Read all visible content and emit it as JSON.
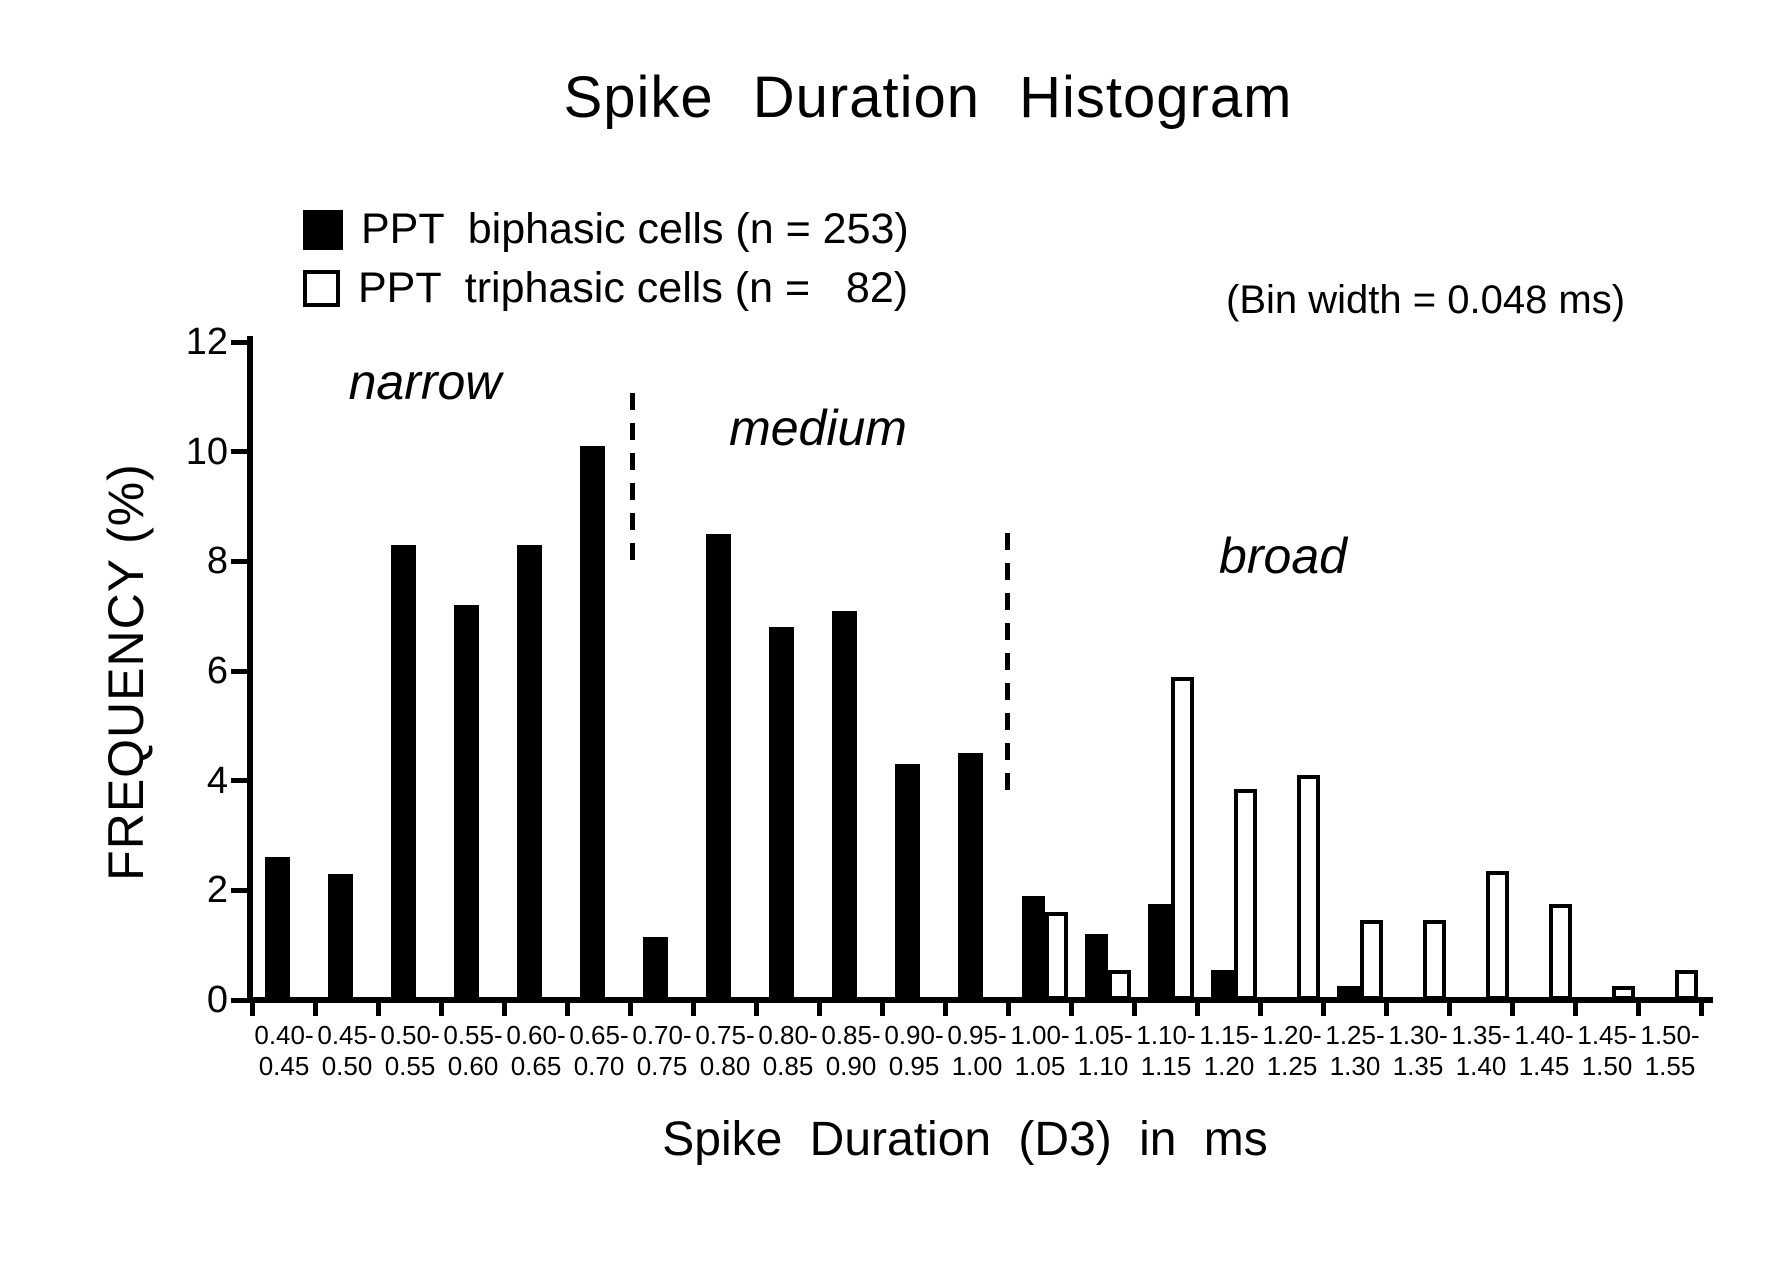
{
  "title": "Spike Duration Histogram",
  "legend": {
    "items": [
      {
        "label": "PPT  biphasic cells (n = 253)",
        "swatch": "black"
      },
      {
        "label": "PPT  triphasic cells (n =   82)",
        "swatch": "white"
      }
    ]
  },
  "bin_note": "(Bin width = 0.048 ms)",
  "y_axis": {
    "label": "FREQUENCY (%)"
  },
  "x_axis": {
    "label": "Spike Duration (D3) in ms"
  },
  "sections": [
    {
      "label": "narrow"
    },
    {
      "label": "medium"
    },
    {
      "label": "broad"
    }
  ],
  "chart_data": {
    "type": "bar",
    "title": "Spike Duration Histogram",
    "xlabel": "Spike Duration (D3) in ms",
    "ylabel": "FREQUENCY (%)",
    "ylim": [
      0,
      12
    ],
    "y_ticks": [
      0,
      2,
      4,
      6,
      8,
      10,
      12
    ],
    "grid": false,
    "legend_position": "top-left",
    "bin_width_note": "(Bin width = 0.048 ms)",
    "categories": [
      "0.40-0.45",
      "0.45-0.50",
      "0.50-0.55",
      "0.55-0.60",
      "0.60-0.65",
      "0.65-0.70",
      "0.70-0.75",
      "0.75-0.80",
      "0.80-0.85",
      "0.85-0.90",
      "0.90-0.95",
      "0.95-1.00",
      "1.00-1.05",
      "1.05-1.10",
      "1.10-1.15",
      "1.15-1.20",
      "1.20-1.25",
      "1.25-1.30",
      "1.30-1.35",
      "1.35-1.40",
      "1.40-1.45",
      "1.45-1.50",
      "1.50-1.55"
    ],
    "series": [
      {
        "name": "PPT biphasic cells (n = 253)",
        "color": "#000000",
        "values": [
          2.6,
          2.3,
          8.3,
          7.2,
          8.3,
          10.1,
          1.15,
          8.5,
          6.8,
          7.1,
          4.3,
          4.5,
          1.9,
          1.2,
          1.75,
          0.55,
          0,
          0.25,
          0,
          0,
          0,
          0,
          0
        ]
      },
      {
        "name": "PPT triphasic cells (n = 82)",
        "color": "#ffffff",
        "values": [
          0,
          0,
          0,
          0,
          0,
          0,
          0,
          0,
          0,
          0,
          0,
          0,
          1.6,
          0.55,
          5.9,
          3.85,
          4.1,
          1.45,
          1.45,
          2.35,
          1.75,
          0.25,
          0.55
        ]
      }
    ],
    "annotations": [
      {
        "text": "narrow",
        "region": "short spikes"
      },
      {
        "text": "medium",
        "region": "middle spikes"
      },
      {
        "text": "broad",
        "region": "long spikes"
      }
    ]
  }
}
